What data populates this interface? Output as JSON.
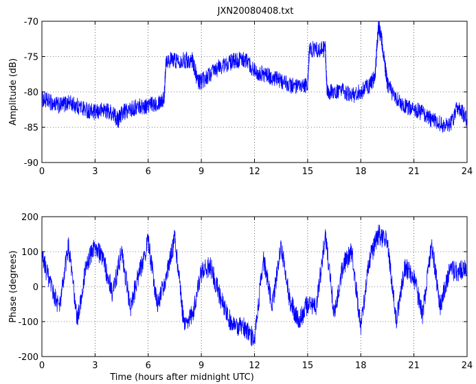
{
  "chart_data": [
    {
      "type": "line",
      "title": "JXN20080408.txt",
      "xlabel": "",
      "ylabel": "Amplitude (dB)",
      "xlim": [
        0,
        24
      ],
      "ylim": [
        -90,
        -70
      ],
      "xticks": [
        0,
        3,
        6,
        9,
        12,
        15,
        18,
        21,
        24
      ],
      "yticks": [
        -90,
        -85,
        -80,
        -75,
        -70
      ],
      "grid": "dotted",
      "color": "#0000ff",
      "series": [
        {
          "x": [
            0,
            0.5,
            1,
            1.5,
            2,
            2.5,
            3,
            3.5,
            4,
            4.3,
            4.5,
            5,
            5.5,
            6,
            6.5,
            6.9,
            7.0,
            7.5,
            8,
            8.5,
            8.8,
            9.0,
            9.5,
            10,
            10.5,
            11,
            11.5,
            12,
            12.5,
            13,
            13.5,
            14,
            14.5,
            15.0,
            15.1,
            15.5,
            16.0,
            16.1,
            16.5,
            17,
            17.5,
            18,
            18.5,
            18.8,
            19.0,
            19.2,
            19.5,
            20,
            20.5,
            21,
            21.5,
            22,
            22.5,
            23,
            23.5,
            24
          ],
          "y": [
            -81,
            -81.5,
            -82,
            -81.5,
            -82,
            -82.5,
            -83,
            -82.5,
            -83,
            -84,
            -83,
            -82.5,
            -82,
            -82,
            -81.5,
            -81,
            -75.5,
            -75.5,
            -75.5,
            -75.5,
            -78.5,
            -78.5,
            -77.5,
            -76.5,
            -76,
            -75.5,
            -75.5,
            -77,
            -77.5,
            -78,
            -78.5,
            -79,
            -79.5,
            -79,
            -74,
            -74,
            -74,
            -80,
            -80,
            -80,
            -80.5,
            -80,
            -79,
            -78,
            -70.5,
            -73,
            -79,
            -81,
            -82,
            -82.5,
            -83,
            -84,
            -84.5,
            -85,
            -82,
            -84
          ]
        }
      ]
    },
    {
      "type": "line",
      "title": "",
      "xlabel": "Time (hours after midnight UTC)",
      "ylabel": "Phase (degrees)",
      "xlim": [
        0,
        24
      ],
      "ylim": [
        -200,
        200
      ],
      "xticks": [
        0,
        3,
        6,
        9,
        12,
        15,
        18,
        21,
        24
      ],
      "yticks": [
        -200,
        -100,
        0,
        100,
        200
      ],
      "grid": "dotted",
      "color": "#0000ff",
      "series": [
        {
          "x": [
            0,
            0.5,
            1,
            1.5,
            2,
            2.5,
            3,
            3.5,
            4,
            4.5,
            5,
            5.5,
            6,
            6.5,
            7,
            7.5,
            8,
            8.5,
            9,
            9.5,
            10,
            10.5,
            11,
            11.5,
            12,
            12.5,
            13,
            13.5,
            14,
            14.5,
            15,
            15.5,
            16,
            16.5,
            17,
            17.5,
            18,
            18.5,
            19,
            19.5,
            20,
            20.5,
            21,
            21.5,
            22,
            22.5,
            23,
            23.5,
            24
          ],
          "y": [
            90,
            0,
            -60,
            120,
            -100,
            60,
            120,
            70,
            -20,
            100,
            -60,
            40,
            130,
            -50,
            20,
            140,
            -100,
            -80,
            40,
            60,
            -20,
            -90,
            -110,
            -120,
            -150,
            80,
            -60,
            120,
            -40,
            -100,
            -50,
            -60,
            150,
            -80,
            60,
            100,
            -120,
            80,
            150,
            130,
            -100,
            60,
            20,
            -80,
            120,
            -60,
            50,
            40,
            60
          ]
        }
      ]
    }
  ]
}
